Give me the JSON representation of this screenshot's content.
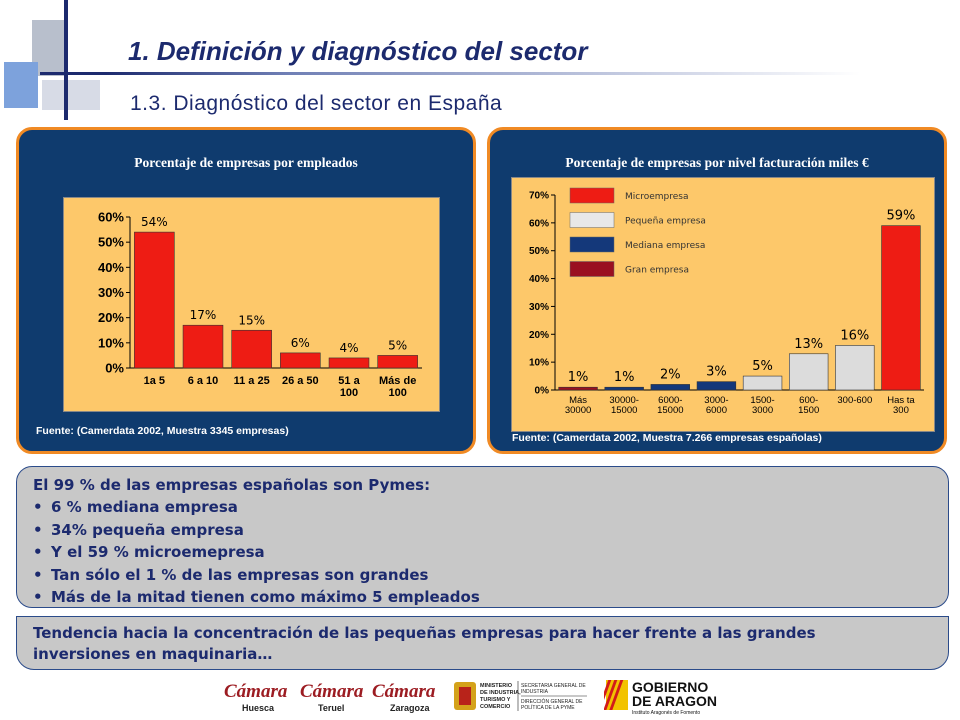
{
  "header": {
    "title": "1.  Definición y diagnóstico del sector",
    "subtitle": "1.3. Diagnóstico del sector en España"
  },
  "colors": {
    "navy": "#1c2a6e",
    "panel_bg": "#0f3b6e",
    "panel_border": "#f08a24",
    "chart_bg": "#fdc86a",
    "bar_red": "#ee1c14",
    "bar_grey": "#dcdcdc",
    "bar_navy": "#14387a",
    "bar_darkred": "#9a1020",
    "box_grey": "#c8c8c8"
  },
  "left_panel": {
    "title": "Porcentaje de empresas por empleados",
    "source": "Fuente: (Camerdata 2002, Muestra 3345 empresas)"
  },
  "right_panel": {
    "title": "Porcentaje de empresas por nivel facturación miles €",
    "source": "Fuente: (Camerdata 2002, Muestra 7.266 empresas españolas)"
  },
  "chart_data": [
    {
      "type": "bar",
      "title": "Porcentaje de empresas por empleados",
      "categories": [
        [
          "1a 5"
        ],
        [
          "6 a 10"
        ],
        [
          "11 a 25"
        ],
        [
          "26 a 50"
        ],
        [
          "51 a",
          "100"
        ],
        [
          "Más de",
          "100"
        ]
      ],
      "values": [
        54,
        17,
        15,
        6,
        4,
        5
      ],
      "data_labels": [
        "54%",
        "17%",
        "15%",
        "6%",
        "4%",
        "5%"
      ],
      "ylim": [
        0,
        60
      ],
      "yticks": [
        "0%",
        "10%",
        "20%",
        "30%",
        "40%",
        "50%",
        "60%"
      ],
      "color": "#ee1c14",
      "grid": false
    },
    {
      "type": "bar",
      "title": "Porcentaje de empresas por nivel facturación miles €",
      "categories": [
        [
          "Más",
          "30000"
        ],
        [
          "30000-",
          "15000"
        ],
        [
          "6000-",
          "15000"
        ],
        [
          "3000-",
          "6000"
        ],
        [
          "1500-",
          "3000"
        ],
        [
          "600-",
          "1500"
        ],
        [
          "300-600"
        ],
        [
          "Has ta",
          "300"
        ]
      ],
      "values": [
        1,
        1,
        2,
        3,
        5,
        13,
        16,
        59
      ],
      "data_labels": [
        "1%",
        "1%",
        "2%",
        "3%",
        "5%",
        "13%",
        "16%",
        "59%"
      ],
      "bar_colors": [
        "#9a1020",
        "#14387a",
        "#14387a",
        "#14387a",
        "#dcdcdc",
        "#dcdcdc",
        "#dcdcdc",
        "#ee1c14"
      ],
      "ylim": [
        0,
        70
      ],
      "yticks": [
        "0%",
        "10%",
        "20%",
        "30%",
        "40%",
        "50%",
        "60%",
        "70%"
      ],
      "legend_position": "top-left",
      "legend": [
        {
          "label": "Microempresa",
          "color": "#ee1c14"
        },
        {
          "label": "Pequeña empresa",
          "color": "#e8e8e8"
        },
        {
          "label": "Mediana empresa",
          "color": "#14387a"
        },
        {
          "label": "Gran empresa",
          "color": "#9a1020"
        }
      ],
      "grid": false
    }
  ],
  "summary": {
    "lead": "El 99 % de las empresas españolas son Pymes:",
    "bullets": [
      "6 % mediana empresa",
      "34% pequeña empresa",
      "Y el 59 % microemepresa",
      "Tan sólo el 1 % de las empresas son grandes",
      "Más de la mitad tienen como máximo 5 empleados"
    ]
  },
  "note": {
    "line1": "Tendencia hacia la concentración de las pequeñas empresas para hacer frente a las grandes",
    "line2": "inversiones en maquinaria…"
  },
  "logos": {
    "camara_name": "Cámara",
    "camara_1": "Huesca",
    "camara_2": "Teruel",
    "camara_3": "Zaragoza",
    "ministerio_1": "MINISTERIO",
    "ministerio_2": "DE INDUSTRIA,",
    "ministerio_3": "TURISMO Y",
    "ministerio_4": "COMERCIO",
    "secretaria_1": "SECRETARIA GENERAL DE",
    "secretaria_2": "INDUSTRIA",
    "direccion_1": "DIRECCIÓN GENERAL DE",
    "direccion_2": "POLÍTICA DE LA PYME",
    "gobierno_1": "GOBIERNO",
    "gobierno_2": "DE ARAGON",
    "gobierno_3": "Instituto Aragonés de Fomento"
  }
}
